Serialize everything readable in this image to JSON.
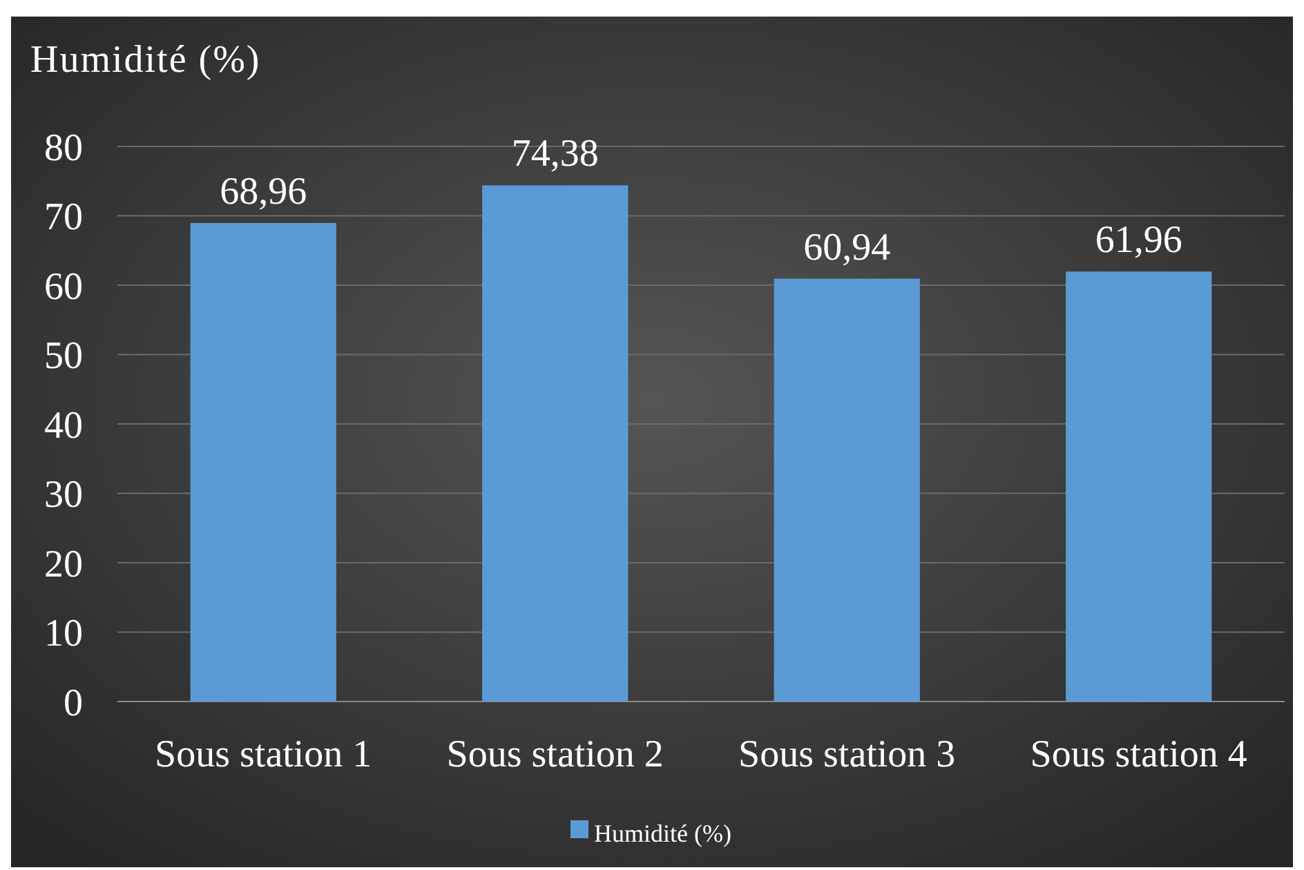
{
  "chart_data": {
    "type": "bar",
    "title": "Humidité (%)",
    "categories": [
      "Sous station 1",
      "Sous station 2",
      "Sous station 3",
      "Sous station 4"
    ],
    "series": [
      {
        "name": "Humidité (%)",
        "color": "#5b9bd5",
        "values": [
          68.96,
          74.38,
          60.94,
          61.96
        ],
        "value_labels": [
          "68,96",
          "74,38",
          "60,94",
          "61,96"
        ]
      }
    ],
    "ylim": [
      0,
      80
    ],
    "yticks": [
      0,
      10,
      20,
      30,
      40,
      50,
      60,
      70,
      80
    ],
    "grid": "y",
    "legend": "bottom"
  }
}
